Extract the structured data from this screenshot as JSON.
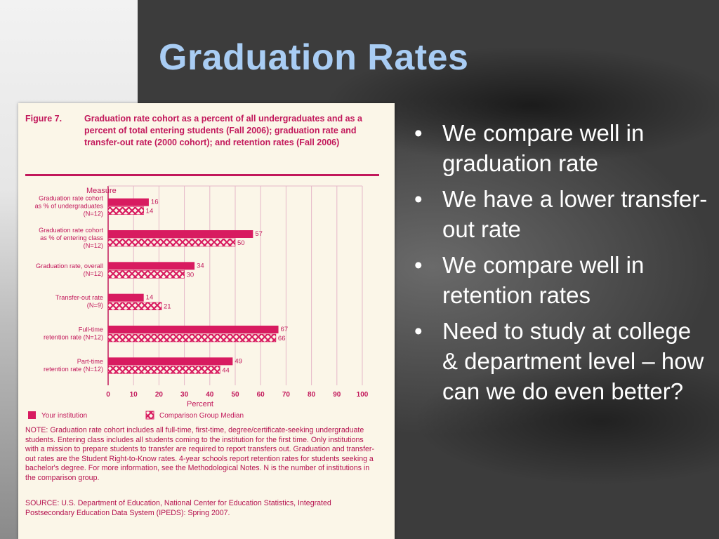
{
  "slide": {
    "title": "Graduation Rates",
    "bullets": [
      "We compare well in graduation rate",
      "We have a lower transfer-out rate",
      "We compare well in retention rates",
      "Need to study at college & department level – how can we do even better?"
    ]
  },
  "figure": {
    "label": "Figure 7.",
    "title": "Graduation rate cohort as a percent of all undergraduates and as a percent of total entering students (Fall 2006); graduation rate and transfer-out rate (2000 cohort); and retention rates (Fall 2006)",
    "note": "NOTE: Graduation rate cohort includes all full-time, first-time, degree/certificate-seeking undergraduate students. Entering class includes all students coming to the institution for the first time. Only institutions with a mission to prepare students to transfer are required to report transfers out. Graduation and transfer-out rates are the Student Right-to-Know rates. 4-year schools report retention rates for students seeking a bachelor's degree. For more information, see the Methodological Notes. N is the number of institutions in the comparison group.",
    "source": "SOURCE: U.S. Department of Education, National Center for Education Statistics, Integrated Postsecondary Education Data System (IPEDS): Spring 2007."
  },
  "chart_data": {
    "type": "bar",
    "orientation": "horizontal",
    "ylabel": "Measure",
    "xlabel": "Percent",
    "xlim": [
      0,
      100
    ],
    "xticks": [
      0,
      10,
      20,
      30,
      40,
      50,
      60,
      70,
      80,
      90,
      100
    ],
    "categories": [
      [
        "Graduation rate cohort",
        "as % of undergraduates",
        "(N=12)"
      ],
      [
        "Graduation rate cohort",
        "as % of entering class",
        "(N=12)"
      ],
      [
        "Graduation rate, overall",
        "(N=12)"
      ],
      [
        "Transfer-out rate",
        "(N=9)"
      ],
      [
        "Full-time",
        "retention rate (N=12)"
      ],
      [
        "Part-time",
        "retention rate (N=12)"
      ]
    ],
    "series": [
      {
        "name": "Your institution",
        "values": [
          16,
          57,
          34,
          14,
          67,
          49
        ],
        "color": "#d81b60",
        "pattern": "solid"
      },
      {
        "name": "Comparison Group Median",
        "values": [
          14,
          50,
          30,
          21,
          66,
          44
        ],
        "color": "#d81b60",
        "pattern": "crosshatch"
      }
    ],
    "legend_position": "bottom",
    "grid": true
  }
}
